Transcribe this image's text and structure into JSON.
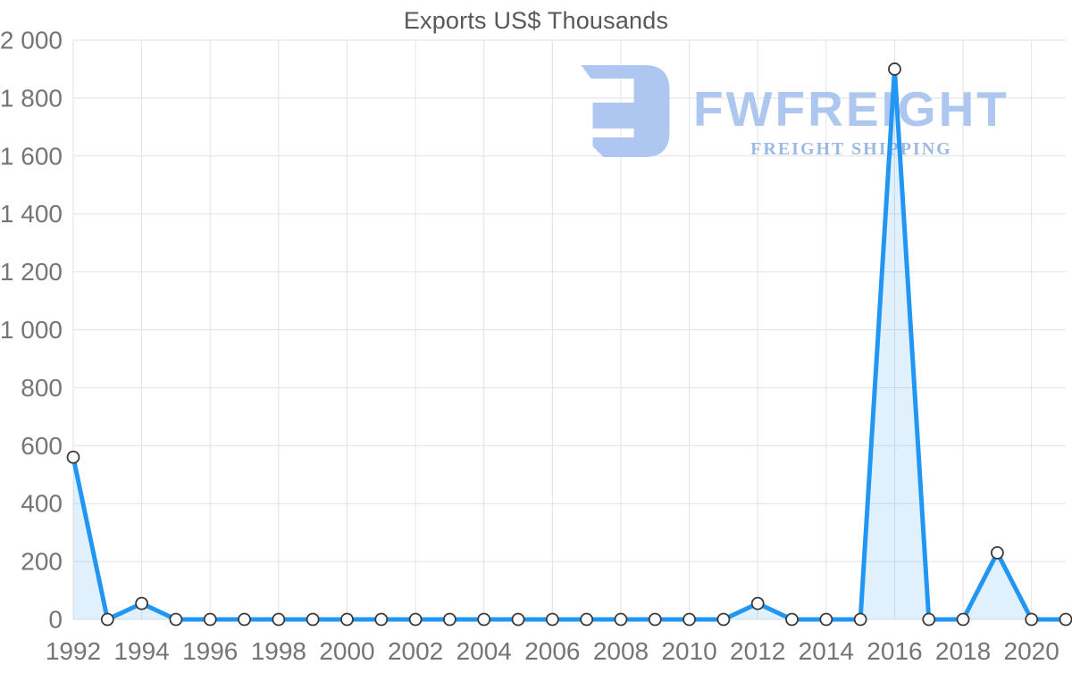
{
  "chart_data": {
    "type": "line",
    "title": "Exports US$ Thousands",
    "x": [
      1992,
      1993,
      1994,
      1995,
      1996,
      1997,
      1998,
      1999,
      2000,
      2001,
      2002,
      2003,
      2004,
      2005,
      2006,
      2007,
      2008,
      2009,
      2010,
      2011,
      2012,
      2013,
      2014,
      2015,
      2016,
      2017,
      2018,
      2019,
      2020,
      2021
    ],
    "values": [
      560,
      0,
      55,
      0,
      0,
      0,
      0,
      0,
      0,
      0,
      0,
      0,
      0,
      0,
      0,
      0,
      0,
      0,
      0,
      0,
      55,
      0,
      0,
      0,
      1900,
      0,
      0,
      230,
      0,
      0
    ],
    "xlabel": "",
    "ylabel": "",
    "ylim": [
      0,
      2000
    ],
    "ytick_interval": 200,
    "ytick_labels": [
      "0",
      "200",
      "400",
      "600",
      "800",
      "1 000",
      "1 200",
      "1 400",
      "1 600",
      "1 800",
      "2 000"
    ],
    "xtick_labels": [
      "1992",
      "1994",
      "1996",
      "1998",
      "2000",
      "2002",
      "2004",
      "2006",
      "2008",
      "2010",
      "2012",
      "2014",
      "2016",
      "2018",
      "2020"
    ],
    "xtick_years": [
      1992,
      1994,
      1996,
      1998,
      2000,
      2002,
      2004,
      2006,
      2008,
      2010,
      2012,
      2014,
      2016,
      2018,
      2020
    ],
    "grid": "on",
    "legend": "none",
    "colors": {
      "line": "#2196f3",
      "area_fill": "#2196f3",
      "area_fill_opacity": 0.14,
      "marker_fill": "#ffffff",
      "marker_stroke": "#3a3a3a",
      "grid_line": "#e2e2e2",
      "tick_label": "#757575",
      "title": "#57585a"
    }
  },
  "watermark": {
    "brand": "FWFREIGHT",
    "tagline": "FREIGHT SHIPPING",
    "brand_color": "#a7c3ef",
    "tagline_color": "#93b3e5",
    "glyph_color": "#a7c3ef"
  }
}
